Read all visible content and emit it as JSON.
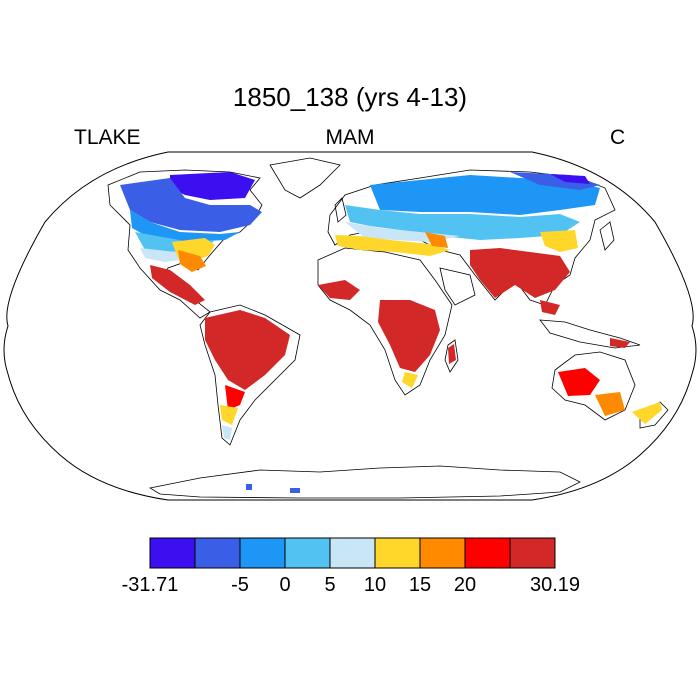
{
  "title": "1850_138 (yrs 4-13)",
  "left_label": "TLAKE",
  "center_label": "MAM",
  "right_label": "C",
  "colorbar": {
    "colors": [
      "#3b0ff0",
      "#3a5fe6",
      "#1e96f5",
      "#52c2f2",
      "#c8e6f5",
      "#ffd62a",
      "#ff8a00",
      "#ff0000",
      "#d22828"
    ],
    "tick_labels": [
      "-31.71",
      "-5",
      "0",
      "5",
      "10",
      "15",
      "20",
      "30.19"
    ],
    "tick_box_index": [
      0,
      2,
      3,
      4,
      5,
      6,
      7,
      9
    ],
    "boundaries": [
      -31.71,
      -10,
      -5,
      0,
      5,
      10,
      15,
      20,
      25,
      30.19
    ]
  },
  "map": {
    "projection": "Robinson",
    "variable": "TLAKE",
    "units": "C",
    "season": "MAM"
  }
}
